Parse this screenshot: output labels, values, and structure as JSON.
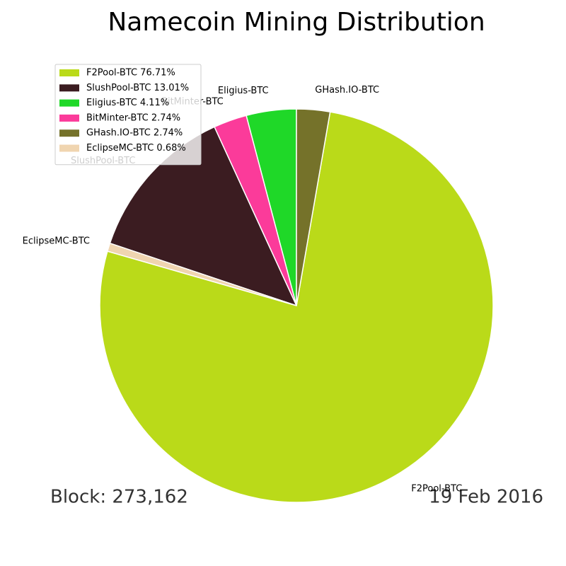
{
  "chart_data": {
    "type": "pie",
    "title": "Namecoin Mining Distribution",
    "categories": [
      "Eligius-BTC",
      "BitMinter-BTC",
      "SlushPool-BTC",
      "EclipseMC-BTC",
      "F2Pool-BTC",
      "GHash.IO-BTC"
    ],
    "values": [
      4.11,
      2.74,
      13.01,
      0.68,
      76.71,
      2.74
    ],
    "colors": [
      "#1fd828",
      "#fb3b9a",
      "#3b1c21",
      "#f0d5b0",
      "#bada19",
      "#75722a"
    ],
    "legend": {
      "position": "upper left",
      "labels": [
        "F2Pool-BTC 76.71%",
        "SlushPool-BTC 13.01%",
        "Eligius-BTC 4.11%",
        "BitMinter-BTC 2.74%",
        "GHash.IO-BTC 2.74%",
        "EclipseMC-BTC 0.68%"
      ],
      "colors": [
        "#bada19",
        "#3b1c21",
        "#1fd828",
        "#fb3b9a",
        "#75722a",
        "#f0d5b0"
      ]
    },
    "annotations": [
      "Block: 273,162",
      "19 Feb 2016"
    ]
  }
}
